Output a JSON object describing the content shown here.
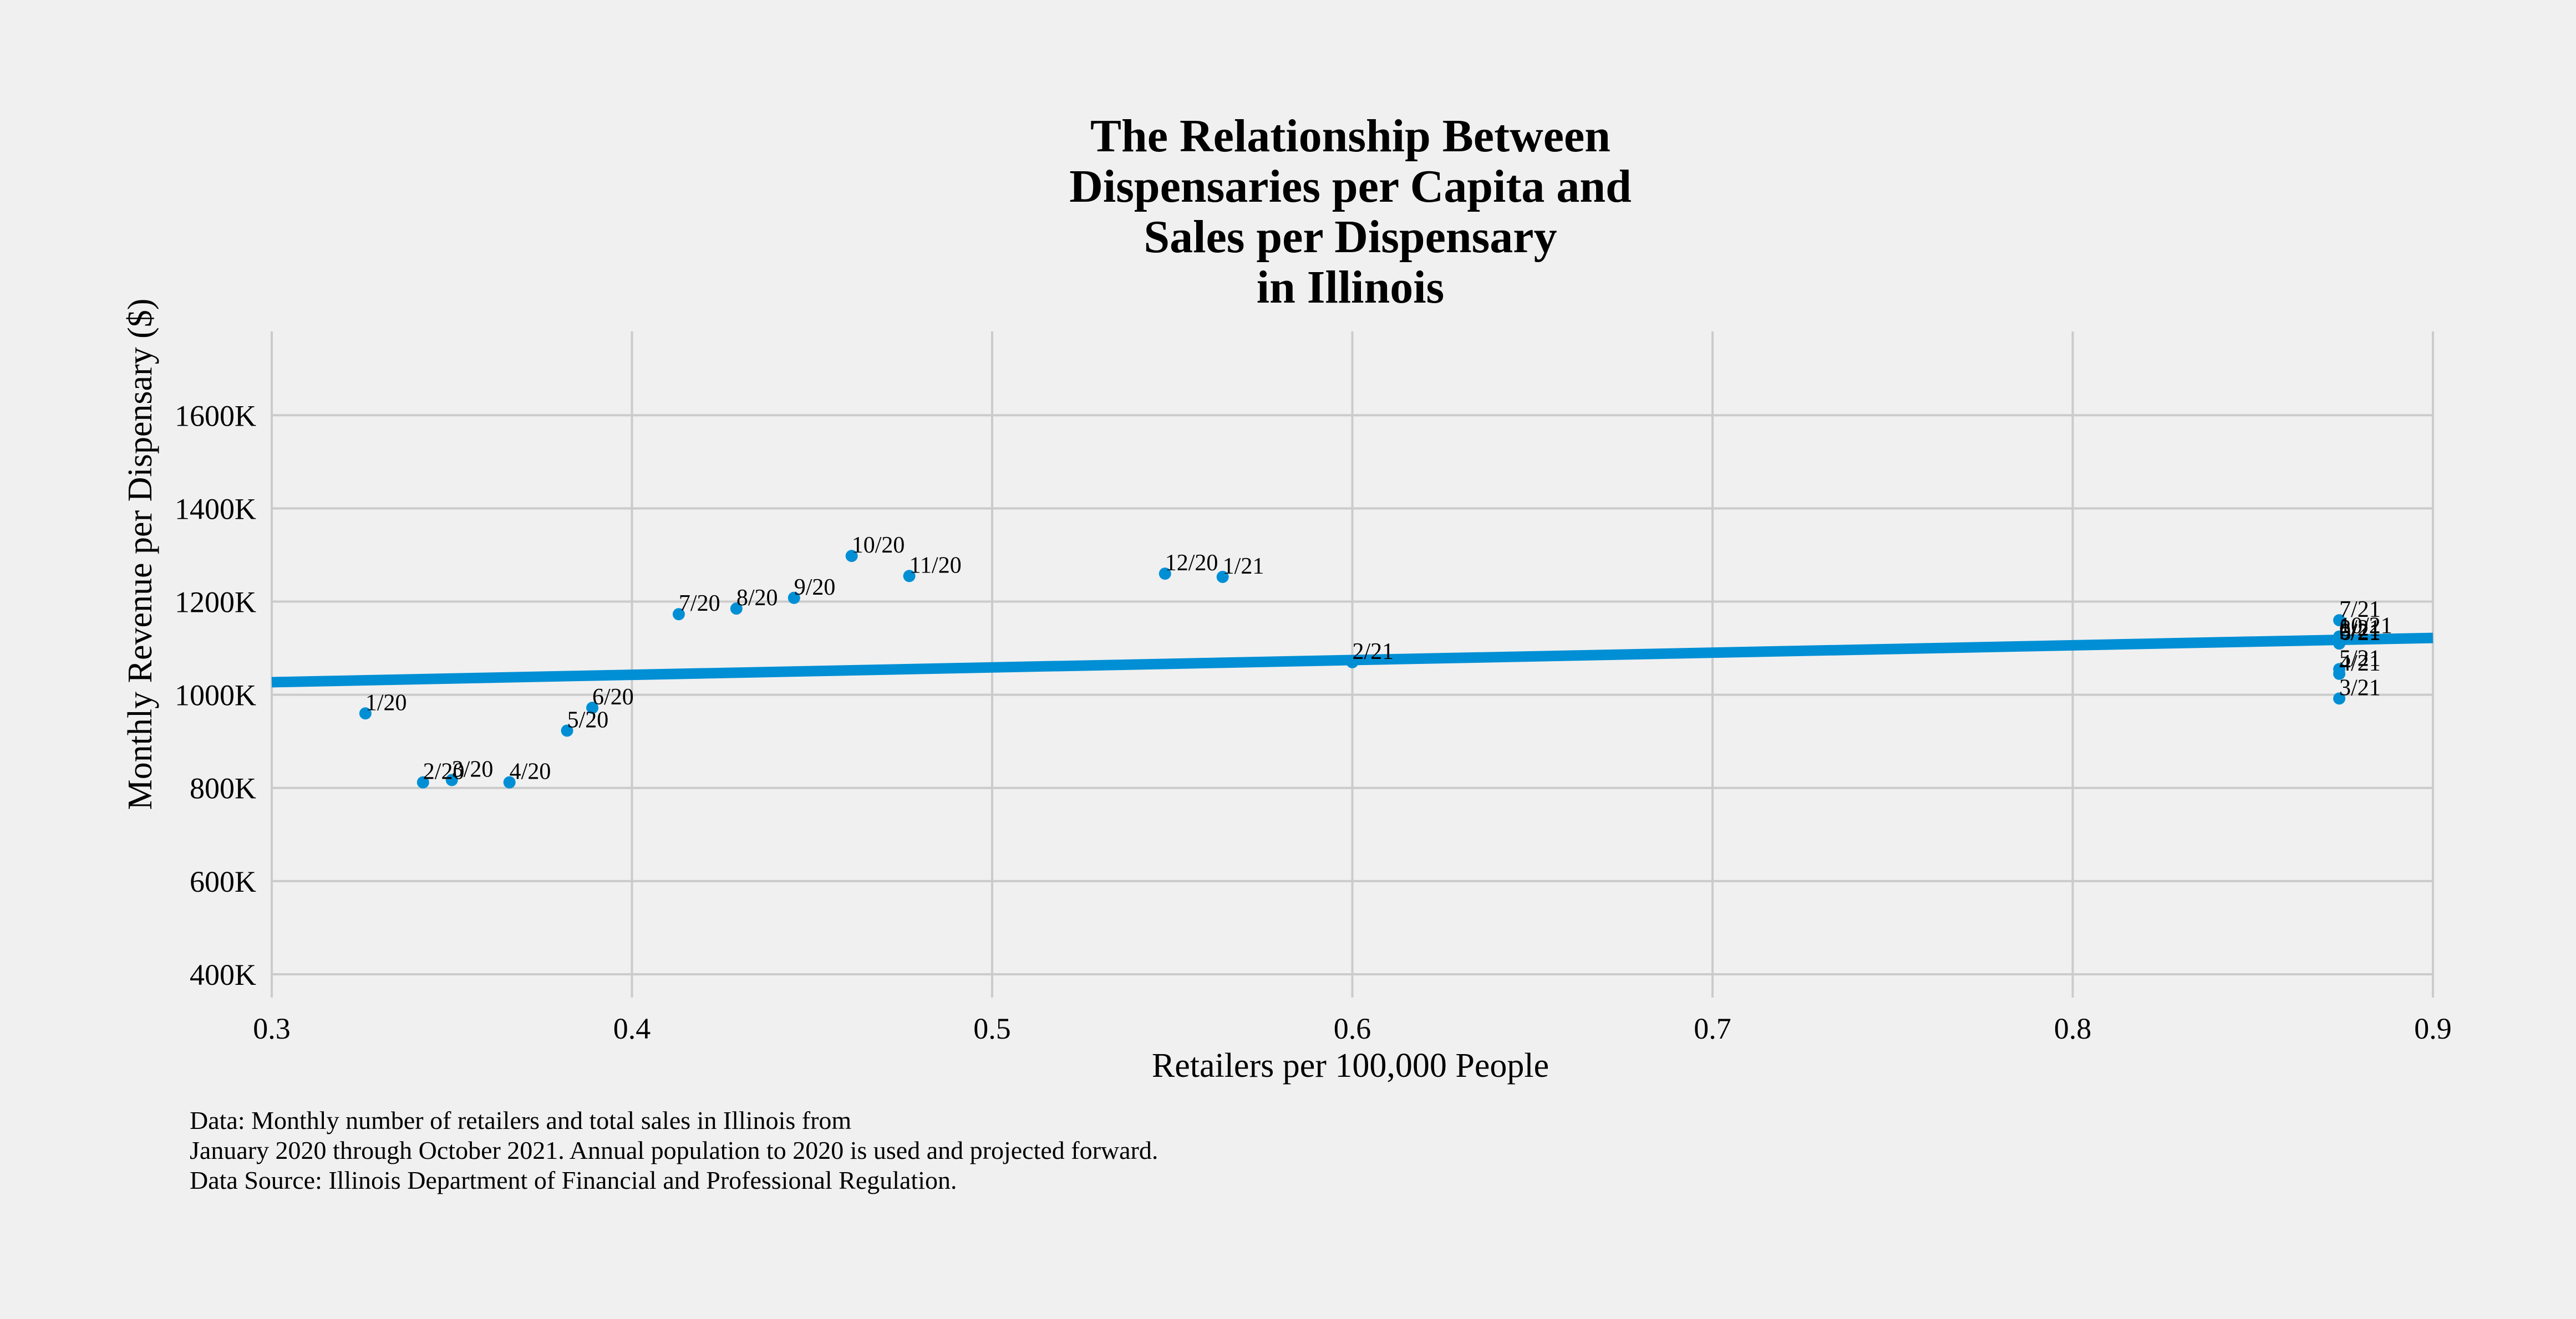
{
  "chart_data": {
    "type": "scatter",
    "title_lines": [
      "The Relationship Between",
      "Dispensaries per Capita and",
      "Sales per Dispensary",
      "in Illinois"
    ],
    "xlabel": "Retailers per 100,000 People",
    "ylabel": "Monthly Revenue per Dispensary ($)",
    "xlim": [
      0.3,
      0.9
    ],
    "ylim": [
      350000,
      1780000
    ],
    "x_ticks": [
      0.3,
      0.4,
      0.5,
      0.6,
      0.7,
      0.8,
      0.9
    ],
    "x_tick_labels": [
      "0.3",
      "0.4",
      "0.5",
      "0.6",
      "0.7",
      "0.8",
      "0.9"
    ],
    "y_ticks": [
      400000,
      600000,
      800000,
      1000000,
      1200000,
      1400000,
      1600000
    ],
    "y_tick_labels": [
      "400K",
      "600K",
      "800K",
      "1000K",
      "1200K",
      "1400K",
      "1600K"
    ],
    "grid": true,
    "point_color": "#008fd5",
    "fit_color": "#008fd5",
    "points": [
      {
        "label": "1/20",
        "x": 0.326,
        "y": 960000
      },
      {
        "label": "2/20",
        "x": 0.342,
        "y": 812000
      },
      {
        "label": "3/20",
        "x": 0.35,
        "y": 817000
      },
      {
        "label": "4/20",
        "x": 0.366,
        "y": 812000
      },
      {
        "label": "5/20",
        "x": 0.382,
        "y": 923000
      },
      {
        "label": "6/20",
        "x": 0.389,
        "y": 972000
      },
      {
        "label": "7/20",
        "x": 0.413,
        "y": 1173000
      },
      {
        "label": "8/20",
        "x": 0.429,
        "y": 1185000
      },
      {
        "label": "9/20",
        "x": 0.445,
        "y": 1208000
      },
      {
        "label": "10/20",
        "x": 0.461,
        "y": 1298000
      },
      {
        "label": "11/20",
        "x": 0.477,
        "y": 1255000
      },
      {
        "label": "12/20",
        "x": 0.548,
        "y": 1260000
      },
      {
        "label": "1/21",
        "x": 0.564,
        "y": 1253000
      },
      {
        "label": "2/21",
        "x": 0.6,
        "y": 1070000
      },
      {
        "label": "3/21",
        "x": 0.874,
        "y": 992000
      },
      {
        "label": "4/21",
        "x": 0.874,
        "y": 1045000
      },
      {
        "label": "5/21",
        "x": 0.874,
        "y": 1055000
      },
      {
        "label": "6/21",
        "x": 0.874,
        "y": 1110000
      },
      {
        "label": "7/21",
        "x": 0.874,
        "y": 1160000
      },
      {
        "label": "8/21",
        "x": 0.874,
        "y": 1120000
      },
      {
        "label": "9/21",
        "x": 0.874,
        "y": 1112000
      },
      {
        "label": "10/21",
        "x": 0.874,
        "y": 1125000
      }
    ],
    "fit_line": {
      "x": [
        0.3,
        0.9
      ],
      "y": [
        1027000,
        1122000
      ]
    }
  },
  "footnote": {
    "lines": [
      "Data: Monthly number of retailers and total sales in Illinois from",
      "January 2020 through October 2021. Annual population to 2020 is used and projected forward.",
      "Data Source: Illinois Department of Financial and Professional Regulation."
    ]
  }
}
